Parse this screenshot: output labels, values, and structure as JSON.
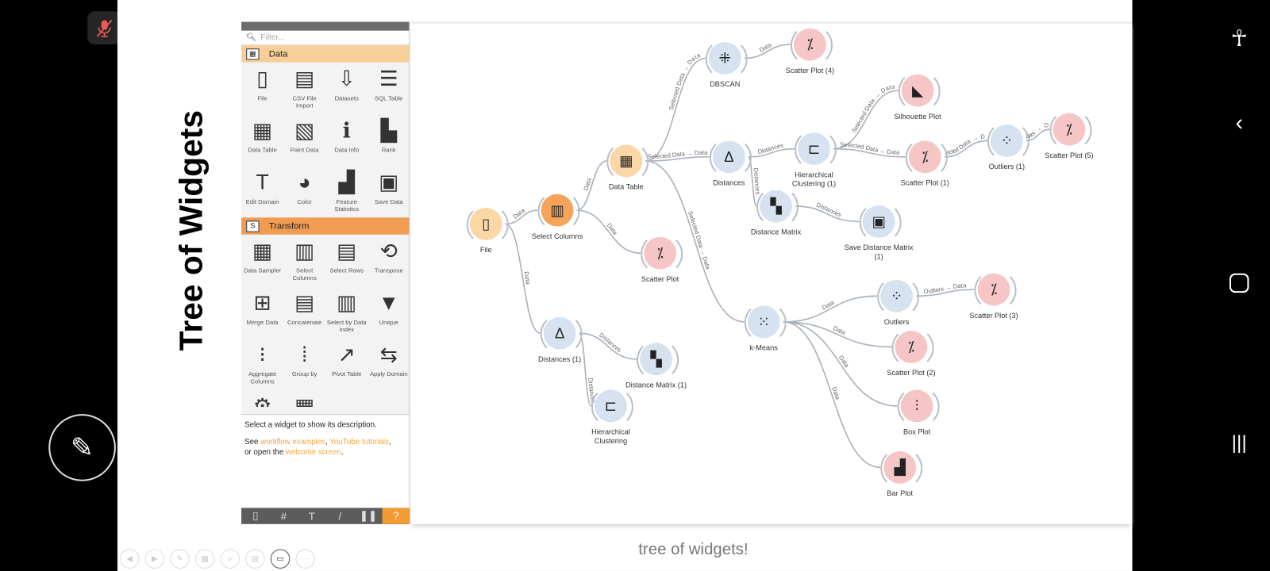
{
  "slide": {
    "title": "Tree of Widgets",
    "caption": "tree of widgets!"
  },
  "overlay": {
    "mic_icon": "mic-muted-icon",
    "pencil_icon": "pencil-icon",
    "mic_color": "#e85a5a"
  },
  "android_nav": [
    "accessibility-icon",
    "back-icon",
    "home-icon",
    "recents-icon"
  ],
  "presentation_controls": [
    "previous",
    "next",
    "pen",
    "slides",
    "zoom",
    "subtitles",
    "camera",
    "more"
  ],
  "palette": {
    "filter_placeholder": "Filter...",
    "sections": [
      {
        "name": "Data",
        "color": "#f8cf98",
        "items": [
          {
            "label": "File",
            "icon": "▯"
          },
          {
            "label": "CSV File Import",
            "icon": "▤"
          },
          {
            "label": "Datasets",
            "icon": "⇩"
          },
          {
            "label": "SQL Table",
            "icon": "☰"
          },
          {
            "label": "Data Table",
            "icon": "▦"
          },
          {
            "label": "Paint Data",
            "icon": "▧"
          },
          {
            "label": "Data Info",
            "icon": "ℹ"
          },
          {
            "label": "Rank",
            "icon": "▙"
          },
          {
            "label": "Edit Domain",
            "icon": "T"
          },
          {
            "label": "Color",
            "icon": "◕"
          },
          {
            "label": "Feature Statistics",
            "icon": "▟"
          },
          {
            "label": "Save Data",
            "icon": "▣"
          }
        ]
      },
      {
        "name": "Transform",
        "color": "#f29b52",
        "items": [
          {
            "label": "Data Sampler",
            "icon": "▦"
          },
          {
            "label": "Select Columns",
            "icon": "▥"
          },
          {
            "label": "Select Rows",
            "icon": "▤"
          },
          {
            "label": "Transpose",
            "icon": "⟲"
          },
          {
            "label": "Merge Data",
            "icon": "⊞"
          },
          {
            "label": "Concatenate",
            "icon": "▤"
          },
          {
            "label": "Select by Data Index",
            "icon": "▥"
          },
          {
            "label": "Unique",
            "icon": "▼"
          },
          {
            "label": "Aggregate Columns",
            "icon": "⁝"
          },
          {
            "label": "Group by",
            "icon": "⁞"
          },
          {
            "label": "Pivot Table",
            "icon": "↗"
          },
          {
            "label": "Apply Domain",
            "icon": "⇆"
          },
          {
            "label": "",
            "icon": "⚙"
          },
          {
            "label": "",
            "icon": "▦"
          },
          {
            "label": "",
            "icon": "▂"
          },
          {
            "label": "",
            "icon": "▁"
          }
        ]
      }
    ],
    "description": {
      "line1": "Select a widget to show its description.",
      "see": "See ",
      "link1": "workflow examples",
      "sep": ", ",
      "link2": "YouTube tutorials",
      "comma": ",",
      "or_open": "or open the ",
      "link3": "welcome screen",
      "end": "."
    },
    "toolbar": [
      "▯",
      "#",
      "T",
      "/",
      "❚❚",
      "?"
    ]
  },
  "workflow": {
    "nodes": [
      {
        "id": "file",
        "label": "File",
        "kind": "lorange",
        "icon": "▯"
      },
      {
        "id": "selcols",
        "label": "Select Columns",
        "kind": "orange",
        "icon": "▥"
      },
      {
        "id": "dtable",
        "label": "Data Table",
        "kind": "lorange",
        "icon": "▦"
      },
      {
        "id": "sp",
        "label": "Scatter Plot",
        "kind": "pink",
        "icon": "⁒"
      },
      {
        "id": "dbscan",
        "label": "DBSCAN",
        "kind": "blue",
        "icon": "⁜"
      },
      {
        "id": "sp4",
        "label": "Scatter Plot (4)",
        "kind": "pink",
        "icon": "⁒"
      },
      {
        "id": "dist",
        "label": "Distances",
        "kind": "blue",
        "icon": "Δ"
      },
      {
        "id": "hc1",
        "label": "Hierarchical Clustering (1)",
        "kind": "blue",
        "icon": "⊏"
      },
      {
        "id": "sil",
        "label": "Silhouette Plot",
        "kind": "pink",
        "icon": "◣"
      },
      {
        "id": "sp1",
        "label": "Scatter Plot (1)",
        "kind": "pink",
        "icon": "⁒"
      },
      {
        "id": "out1",
        "label": "Outliers (1)",
        "kind": "blue",
        "icon": "⁘"
      },
      {
        "id": "sp5",
        "label": "Scatter Plot (5)",
        "kind": "pink",
        "icon": "⁒"
      },
      {
        "id": "dm",
        "label": "Distance Matrix",
        "kind": "blue",
        "icon": "▚"
      },
      {
        "id": "sdm",
        "label": "Save Distance Matrix (1)",
        "kind": "blue",
        "icon": "▣"
      },
      {
        "id": "km",
        "label": "k-Means",
        "kind": "blue",
        "icon": "⁙"
      },
      {
        "id": "out",
        "label": "Outliers",
        "kind": "blue",
        "icon": "⁘"
      },
      {
        "id": "sp3",
        "label": "Scatter Plot (3)",
        "kind": "pink",
        "icon": "⁒"
      },
      {
        "id": "sp2",
        "label": "Scatter Plot (2)",
        "kind": "pink",
        "icon": "⁒"
      },
      {
        "id": "box",
        "label": "Box Plot",
        "kind": "pink",
        "icon": "⫶"
      },
      {
        "id": "bar",
        "label": "Bar Plot",
        "kind": "pink",
        "icon": "▟"
      },
      {
        "id": "dist1",
        "label": "Distances (1)",
        "kind": "blue",
        "icon": "Δ"
      },
      {
        "id": "dm1",
        "label": "Distance Matrix (1)",
        "kind": "blue",
        "icon": "▚"
      },
      {
        "id": "hc",
        "label": "Hierarchical Clustering",
        "kind": "blue",
        "icon": "⊏"
      }
    ],
    "links": [
      {
        "from": "file",
        "to": "selcols",
        "label": "Data"
      },
      {
        "from": "selcols",
        "to": "dtable",
        "label": "Data"
      },
      {
        "from": "selcols",
        "to": "sp",
        "label": "Data"
      },
      {
        "from": "file",
        "to": "dist1",
        "label": "Data"
      },
      {
        "from": "dist1",
        "to": "dm1",
        "label": "Distances"
      },
      {
        "from": "dist1",
        "to": "hc",
        "label": "Distances"
      },
      {
        "from": "dtable",
        "to": "dbscan",
        "label": "Selected Data → Data"
      },
      {
        "from": "dbscan",
        "to": "sp4",
        "label": "Data"
      },
      {
        "from": "dtable",
        "to": "dist",
        "label": "Selected Data → Data"
      },
      {
        "from": "dtable",
        "to": "km",
        "label": "Selected Data → Data"
      },
      {
        "from": "dist",
        "to": "hc1",
        "label": "Distances"
      },
      {
        "from": "dist",
        "to": "dm",
        "label": "Distances"
      },
      {
        "from": "dm",
        "to": "sdm",
        "label": "Distances"
      },
      {
        "from": "hc1",
        "to": "sil",
        "label": "Selected Data → Data"
      },
      {
        "from": "hc1",
        "to": "sp1",
        "label": "Selected Data → Data"
      },
      {
        "from": "sp1",
        "to": "out1",
        "label": "Selected Data → Data"
      },
      {
        "from": "out1",
        "to": "sp5",
        "label": "Outliers → Data"
      },
      {
        "from": "km",
        "to": "out",
        "label": "Data"
      },
      {
        "from": "km",
        "to": "sp2",
        "label": "Data"
      },
      {
        "from": "km",
        "to": "box",
        "label": "Data"
      },
      {
        "from": "km",
        "to": "bar",
        "label": "Data"
      },
      {
        "from": "out",
        "to": "sp3",
        "label": "Outliers → Data"
      }
    ]
  }
}
